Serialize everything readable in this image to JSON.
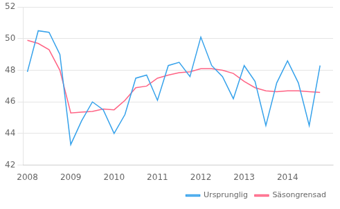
{
  "chart_data": {
    "type": "line",
    "x": [
      2008.0,
      2008.25,
      2008.5,
      2008.75,
      2009.0,
      2009.25,
      2009.5,
      2009.75,
      2010.0,
      2010.25,
      2010.5,
      2010.75,
      2011.0,
      2011.25,
      2011.5,
      2011.75,
      2012.0,
      2012.25,
      2012.5,
      2012.75,
      2013.0,
      2013.25,
      2013.5,
      2013.75,
      2014.0,
      2014.25,
      2014.5,
      2014.75
    ],
    "series": [
      {
        "name": "Ursprunglig",
        "values": [
          47.9,
          50.5,
          50.4,
          49.0,
          43.3,
          44.8,
          46.0,
          45.5,
          44.0,
          45.2,
          47.5,
          47.7,
          46.1,
          48.3,
          48.5,
          47.6,
          50.1,
          48.3,
          47.6,
          46.2,
          48.3,
          47.3,
          44.5,
          47.2,
          48.6,
          47.2,
          44.5,
          48.3
        ]
      },
      {
        "name": "Säsongrensad",
        "values": [
          49.9,
          49.7,
          49.3,
          48.0,
          45.3,
          45.35,
          45.4,
          45.55,
          45.5,
          46.1,
          46.9,
          47.0,
          47.5,
          47.7,
          47.85,
          47.9,
          48.1,
          48.1,
          48.0,
          47.8,
          47.3,
          46.9,
          46.7,
          46.65,
          46.7,
          46.7,
          46.65,
          46.6
        ]
      }
    ],
    "xlim": [
      2007.9,
      2015.05
    ],
    "xticks": [
      2008,
      2009,
      2010,
      2011,
      2012,
      2013,
      2014
    ],
    "ylim": [
      42,
      52
    ],
    "yticks": [
      42,
      44,
      46,
      48,
      50,
      52
    ],
    "grid": "y",
    "legend": "lower right"
  }
}
